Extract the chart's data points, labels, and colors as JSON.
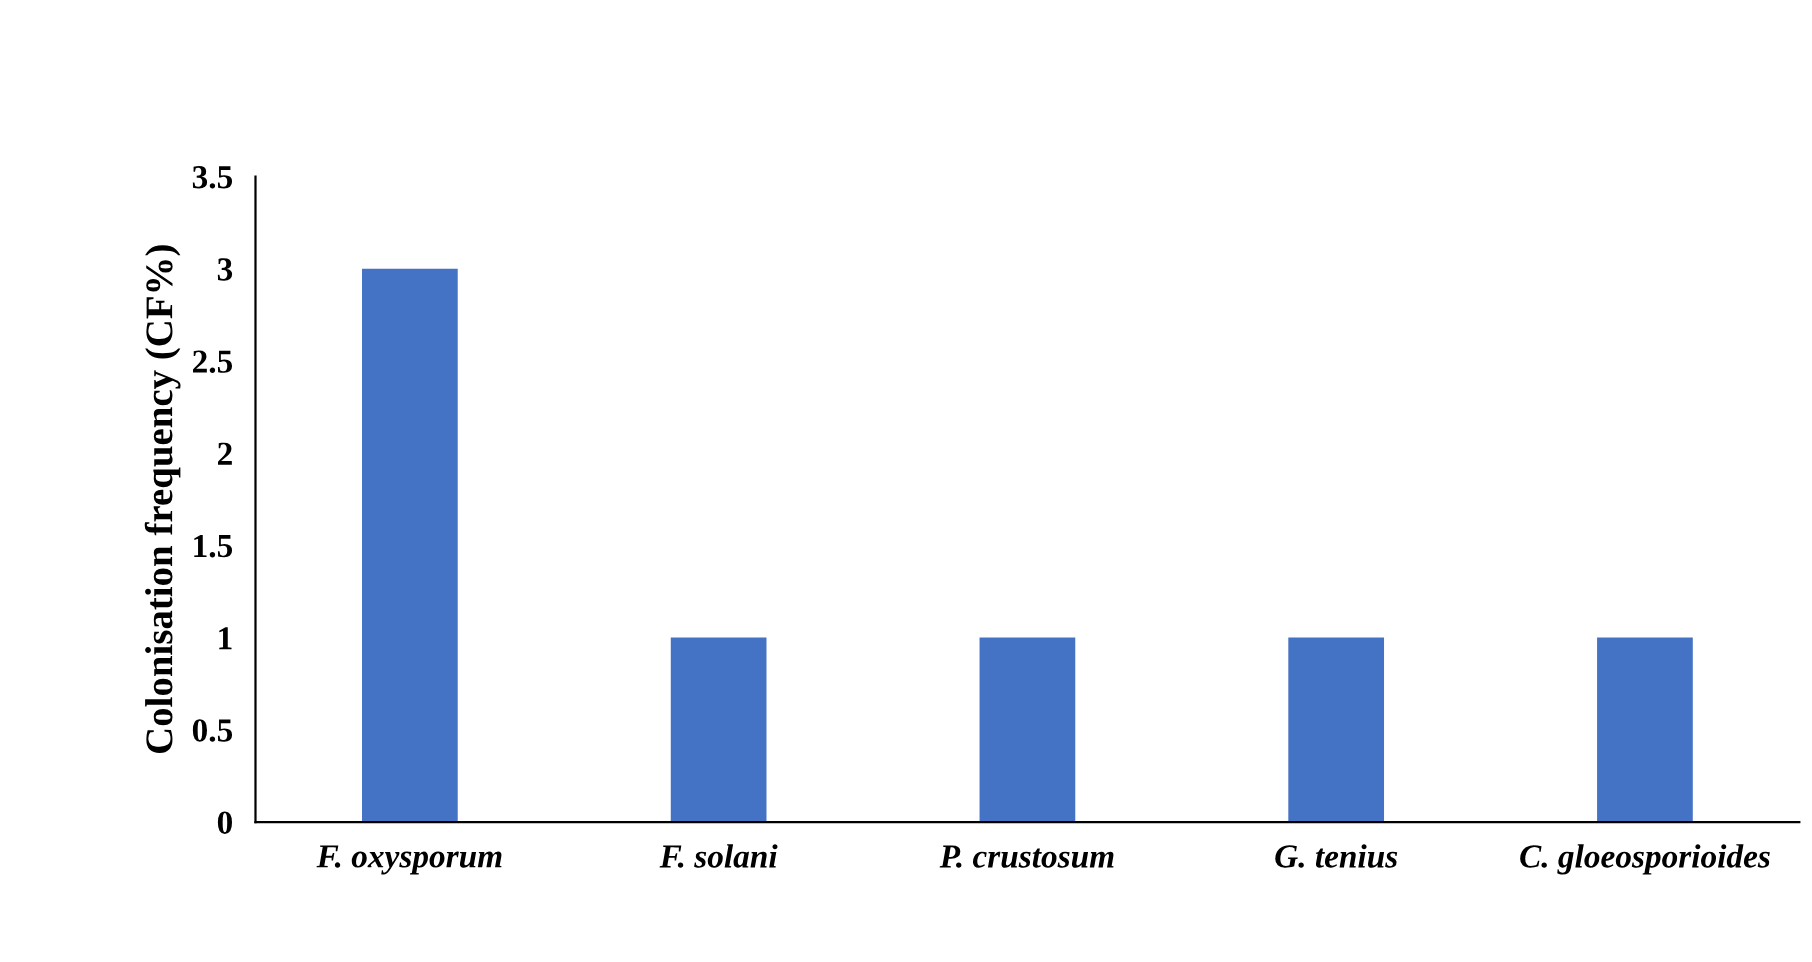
{
  "chart_data": {
    "type": "bar",
    "ylabel": "Colonisation frequency (CF%)",
    "categories": [
      "F. oxysporum",
      "F. solani",
      "P. crustosum",
      "G. tenius",
      "C. gloeosporioides"
    ],
    "values": [
      3,
      1,
      1,
      1,
      1
    ],
    "color": "#4472c4",
    "ylim": [
      0,
      3.5
    ],
    "yticks": [
      0,
      0.5,
      1,
      1.5,
      2,
      2.5,
      3,
      3.5
    ],
    "grid": false,
    "legend": false
  }
}
